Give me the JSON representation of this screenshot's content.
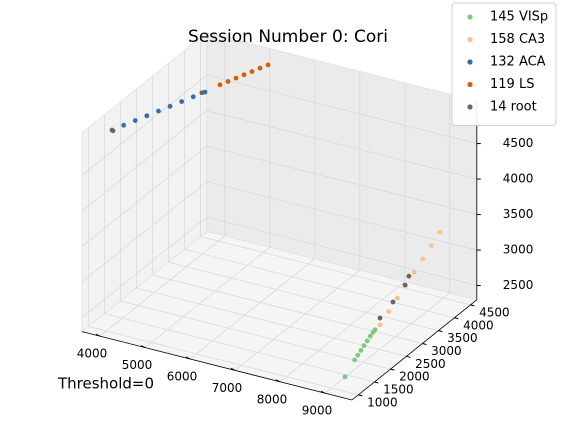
{
  "chart_data": {
    "type": "scatter3d",
    "title": "Session Number 0: Cori",
    "annotation": "Threshold=0",
    "legend": "upper right",
    "xlim": [
      3600,
      9600
    ],
    "ylim": [
      800,
      4700
    ],
    "zlim": [
      2300,
      5100
    ],
    "xticks": [
      4000,
      5000,
      6000,
      7000,
      8000,
      9000
    ],
    "yticks": [
      1000,
      1500,
      2000,
      2500,
      3000,
      3500,
      4000,
      4500
    ],
    "zticks": [
      2500,
      3000,
      3500,
      4000,
      4500
    ],
    "grid": true,
    "series": [
      {
        "name": "145 VISp",
        "color": "#7fc97f",
        "x": [
          9160,
          9175,
          9188,
          9200,
          9212,
          9225,
          9238,
          9250,
          9258
        ],
        "y": [
          1200,
          1480,
          1560,
          1640,
          1720,
          1800,
          1880,
          1950,
          2000
        ],
        "z": [
          2410,
          2550,
          2590,
          2630,
          2670,
          2710,
          2750,
          2780,
          2800
        ]
      },
      {
        "name": "158 CA3",
        "color": "#fdc086",
        "x": [
          9227,
          9255,
          9283,
          9311,
          9339,
          9366,
          9394,
          9422
        ],
        "y": [
          2200,
          2430,
          2660,
          2890,
          3110,
          3340,
          3570,
          3800
        ],
        "z": [
          2790,
          2900,
          3010,
          3110,
          3220,
          3330,
          3440,
          3550
        ]
      },
      {
        "name": "132 ACA",
        "color": "#386cb0",
        "x": [
          3769,
          3850,
          3930,
          4010,
          4090,
          4170,
          4250,
          4330,
          4413
        ],
        "y": [
          1500,
          1750,
          2000,
          2250,
          2500,
          2750,
          3000,
          3250,
          3500
        ],
        "z": [
          4913,
          4902,
          4891,
          4880,
          4870,
          4859,
          4848,
          4837,
          4826
        ]
      },
      {
        "name": "119 LS",
        "color": "#d95f02",
        "x": [
          4676,
          4759,
          4842,
          4925,
          5007,
          5090,
          5173
        ],
        "y": [
          3600,
          3733,
          3867,
          4000,
          4133,
          4267,
          4400
        ],
        "z": [
          4935,
          4947,
          4959,
          4971,
          4982,
          4994,
          5006
        ]
      },
      {
        "name": "14 root",
        "color": "#666666",
        "x": [
          3790,
          4380,
          9262,
          9302,
          9284,
          9300
        ],
        "y": [
          1500,
          3450,
          2150,
          2500,
          2900,
          3000
        ],
        "z": [
          4905,
          4830,
          2911,
          3017,
          3108,
          3200
        ]
      }
    ]
  }
}
